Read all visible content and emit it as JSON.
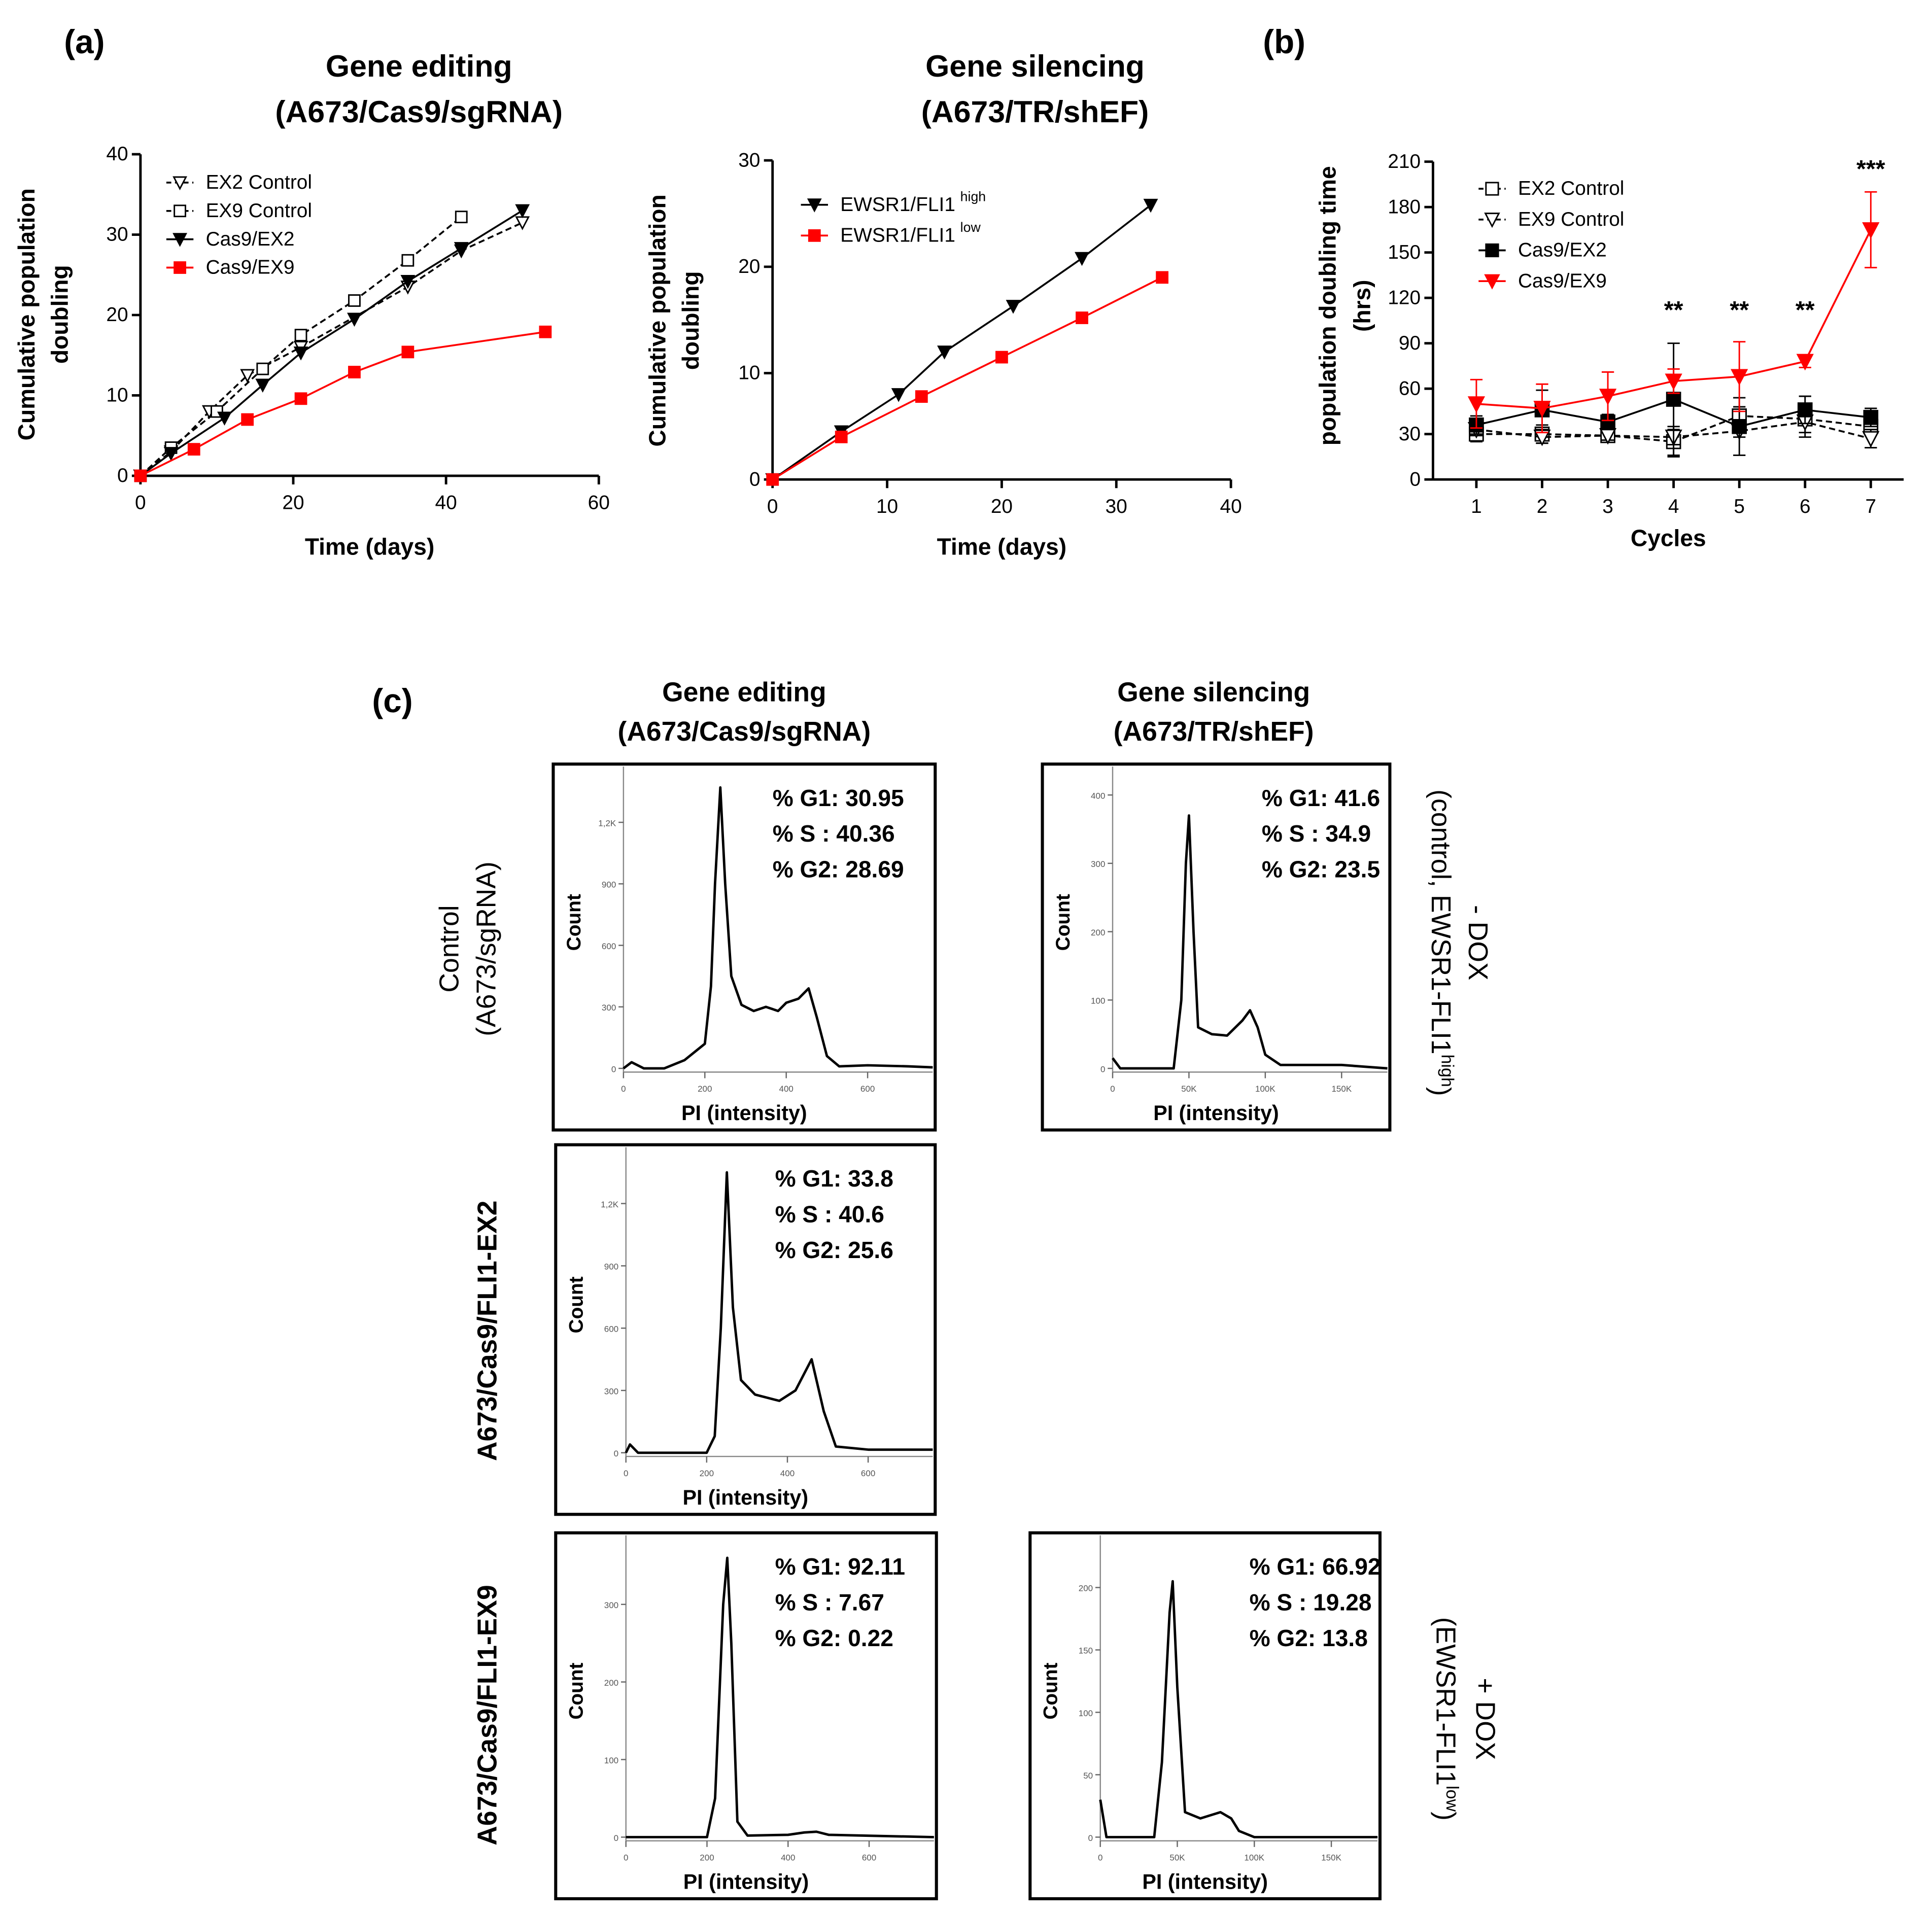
{
  "panel_labels": {
    "a": "(a)",
    "b": "(b)",
    "c": "(c)"
  },
  "titles": {
    "a_edit_1": "Gene editing",
    "a_edit_2": "(A673/Cas9/sgRNA)",
    "a_sil_1": "Gene silencing",
    "a_sil_2": "(A673/TR/shEF)",
    "c_edit_1": "Gene editing",
    "c_edit_2": "(A673/Cas9/sgRNA)",
    "c_sil_1": "Gene silencing",
    "c_sil_2": "(A673/TR/shEF)"
  },
  "row_labels": {
    "control_1": "Control",
    "control_2": "(A673/sgRNA)",
    "ex2": "A673/Cas9/FLI1-EX2",
    "ex9": "A673/Cas9/FLI1-EX9",
    "minus_dox": "- DOX",
    "minus_dox_sub": "(control, EWSR1-FLI1",
    "minus_dox_sup": "high",
    "close_paren": ")",
    "plus_dox": "+ DOX",
    "plus_dox_sub": "(EWSR1-FLI1",
    "plus_dox_sup": "low"
  },
  "chart_data": [
    {
      "id": "a_edit",
      "type": "line",
      "title": "Gene editing (A673/Cas9/sgRNA)",
      "ylabel_lines": [
        "Cumulative population",
        "doubling"
      ],
      "xlabel": "Time (days)",
      "xlim": [
        0,
        60
      ],
      "ylim": [
        0,
        40
      ],
      "xticks": [
        0,
        20,
        40,
        60
      ],
      "yticks": [
        0,
        10,
        20,
        30,
        40
      ],
      "legend": "top-left",
      "series": [
        {
          "name": "EX2 Control",
          "color": "#000000",
          "dash": true,
          "marker": "tri-open",
          "x": [
            0,
            4,
            9,
            14,
            21,
            35,
            42,
            50
          ],
          "y": [
            0,
            3,
            8,
            12.5,
            16,
            23.5,
            28,
            31.5
          ]
        },
        {
          "name": "EX9 Control",
          "color": "#000000",
          "dash": true,
          "marker": "sq-open",
          "x": [
            0,
            4,
            10,
            16,
            21,
            28,
            35,
            42
          ],
          "y": [
            0,
            3.5,
            8,
            13.3,
            17.5,
            21.8,
            26.8,
            32.2
          ]
        },
        {
          "name": "Cas9/EX2",
          "color": "#000000",
          "dash": false,
          "marker": "tri",
          "x": [
            0,
            4,
            11,
            16,
            21,
            28,
            35,
            42,
            50
          ],
          "y": [
            0,
            2.8,
            7.2,
            11.3,
            15.3,
            19.5,
            24.2,
            28.3,
            33
          ]
        },
        {
          "name": "Cas9/EX9",
          "color": "#ff0000",
          "dash": false,
          "marker": "sq",
          "x": [
            0,
            7,
            14,
            21,
            28,
            35,
            53
          ],
          "y": [
            0,
            3.3,
            7,
            9.6,
            12.9,
            15.4,
            17.9
          ]
        }
      ]
    },
    {
      "id": "a_sil",
      "type": "line",
      "title": "Gene silencing (A673/TR/shEF)",
      "ylabel_lines": [
        "Cumulative population",
        "doubling"
      ],
      "xlabel": "Time (days)",
      "xlim": [
        0,
        40
      ],
      "ylim": [
        0,
        30
      ],
      "xticks": [
        0,
        10,
        20,
        30,
        40
      ],
      "yticks": [
        0,
        10,
        20,
        30
      ],
      "legend": "top-left",
      "series": [
        {
          "name": "EWSR1/FLI1",
          "sup": "high",
          "color": "#000000",
          "dash": false,
          "marker": "tri",
          "x": [
            0,
            6,
            11,
            15,
            21,
            27,
            33
          ],
          "y": [
            0,
            4.5,
            8,
            12,
            16.3,
            20.8,
            25.8
          ]
        },
        {
          "name": "EWSR1/FLI1",
          "sup": "low",
          "color": "#ff0000",
          "dash": false,
          "marker": "sq",
          "x": [
            0,
            6,
            13,
            20,
            27,
            34
          ],
          "y": [
            0,
            4,
            7.8,
            11.5,
            15.2,
            19
          ]
        }
      ]
    },
    {
      "id": "b",
      "type": "line",
      "ylabel_lines": [
        "population doubling time",
        "(hrs)"
      ],
      "xlabel": "Cycles",
      "xlim": [
        0.34,
        7.5
      ],
      "ylim": [
        0,
        210
      ],
      "xticks": [
        1,
        2,
        3,
        4,
        5,
        6,
        7
      ],
      "yticks": [
        0,
        30,
        60,
        90,
        120,
        150,
        180,
        210
      ],
      "legend": "top-left",
      "annotations": [
        {
          "x": 4,
          "text": "**"
        },
        {
          "x": 5,
          "text": "**"
        },
        {
          "x": 6,
          "text": "**"
        },
        {
          "x": 7,
          "text": "***"
        }
      ],
      "series": [
        {
          "name": "EX2 Control",
          "color": "#000000",
          "dash": true,
          "marker": "sq-open",
          "x": [
            1,
            2,
            3,
            4,
            5,
            6,
            7
          ],
          "y": [
            30,
            30,
            29,
            25,
            42,
            40,
            35
          ],
          "err": [
            5,
            6,
            3,
            10,
            6,
            9,
            6
          ]
        },
        {
          "name": "EX9 Control",
          "color": "#000000",
          "dash": true,
          "marker": "tri-open",
          "x": [
            1,
            2,
            3,
            4,
            5,
            6,
            7
          ],
          "y": [
            33,
            28,
            29,
            28,
            32,
            38,
            27
          ],
          "err": [
            4,
            4,
            3,
            5,
            4,
            10,
            6
          ]
        },
        {
          "name": "Cas9/EX2",
          "color": "#000000",
          "dash": false,
          "marker": "sq",
          "x": [
            1,
            2,
            3,
            4,
            5,
            6,
            7
          ],
          "y": [
            36,
            46,
            38,
            53,
            35,
            46,
            41
          ],
          "err": [
            6,
            13,
            5,
            37,
            19,
            9,
            6
          ]
        },
        {
          "name": "Cas9/EX9",
          "color": "#ff0000",
          "dash": false,
          "marker": "tri",
          "x": [
            1,
            2,
            3,
            4,
            5,
            6,
            7
          ],
          "y": [
            50,
            47,
            55,
            65,
            68,
            78,
            165
          ],
          "err": [
            16,
            16,
            16,
            8,
            23,
            4,
            25
          ]
        }
      ]
    },
    {
      "id": "h_ctrl_edit",
      "type": "area",
      "xlabel": "PI (intensity)",
      "ylabel": "Count",
      "xlim": [
        0,
        760
      ],
      "ylim": [
        0,
        1400
      ],
      "xticks": [
        0,
        200,
        400,
        600
      ],
      "xtick_labels": [
        "0",
        "200",
        "400",
        "600"
      ],
      "yticks": [
        0,
        300,
        600,
        900,
        1200
      ],
      "ytick_labels": [
        "0",
        "300",
        "600",
        "900",
        "1,2K"
      ],
      "stats": [
        "% G1: 30.95",
        "% S   : 40.36",
        "% G2: 28.69"
      ],
      "x": [
        0,
        20,
        50,
        100,
        150,
        200,
        215,
        225,
        238,
        250,
        265,
        290,
        320,
        350,
        380,
        400,
        430,
        455,
        475,
        500,
        530,
        600,
        700,
        760
      ],
      "y": [
        0,
        30,
        0,
        0,
        40,
        120,
        400,
        900,
        1370,
        900,
        450,
        310,
        280,
        300,
        280,
        320,
        340,
        390,
        250,
        60,
        10,
        15,
        10,
        5
      ]
    },
    {
      "id": "h_ctrl_sil",
      "type": "area",
      "xlabel": "PI (intensity)",
      "ylabel": "Count",
      "xlim": [
        0,
        180000
      ],
      "ylim": [
        0,
        420
      ],
      "xticks": [
        0,
        50000,
        100000,
        150000
      ],
      "xtick_labels": [
        "0",
        "50K",
        "100K",
        "150K"
      ],
      "yticks": [
        0,
        100,
        200,
        300,
        400
      ],
      "ytick_labels": [
        "0",
        "100",
        "200",
        "300",
        "400"
      ],
      "stats": [
        "% G1: 41.6",
        "% S   : 34.9",
        "% G2: 23.5"
      ],
      "x": [
        0,
        5000,
        40000,
        45000,
        48000,
        50000,
        53000,
        56000,
        65000,
        75000,
        85000,
        90000,
        95000,
        100000,
        110000,
        130000,
        150000,
        180000
      ],
      "y": [
        15,
        0,
        0,
        100,
        300,
        370,
        200,
        60,
        50,
        48,
        70,
        85,
        60,
        20,
        5,
        5,
        5,
        0
      ]
    },
    {
      "id": "h_ex2",
      "type": "area",
      "xlabel": "PI (intensity)",
      "ylabel": "Count",
      "xlim": [
        0,
        760
      ],
      "ylim": [
        0,
        1400
      ],
      "xticks": [
        0,
        200,
        400,
        600
      ],
      "xtick_labels": [
        "0",
        "200",
        "400",
        "600"
      ],
      "yticks": [
        0,
        300,
        600,
        900,
        1200
      ],
      "ytick_labels": [
        "0",
        "300",
        "600",
        "900",
        "1,2K"
      ],
      "stats": [
        "% G1: 33.8",
        "% S   : 40.6",
        "% G2: 25.6"
      ],
      "x": [
        0,
        10,
        30,
        200,
        220,
        235,
        250,
        265,
        285,
        320,
        380,
        420,
        460,
        490,
        520,
        600,
        760
      ],
      "y": [
        0,
        40,
        0,
        0,
        80,
        600,
        1350,
        700,
        350,
        280,
        250,
        300,
        450,
        200,
        30,
        15,
        15
      ]
    },
    {
      "id": "h_ex9",
      "type": "area",
      "xlabel": "PI (intensity)",
      "ylabel": "Count",
      "xlim": [
        0,
        760
      ],
      "ylim": [
        0,
        370
      ],
      "xticks": [
        0,
        200,
        400,
        600
      ],
      "xtick_labels": [
        "0",
        "200",
        "400",
        "600"
      ],
      "yticks": [
        0,
        100,
        200,
        300
      ],
      "ytick_labels": [
        "0",
        "100",
        "200",
        "300"
      ],
      "stats": [
        "% G1: 92.11",
        "% S   : 7.67",
        "% G2: 0.22"
      ],
      "x": [
        0,
        200,
        220,
        240,
        250,
        260,
        275,
        300,
        400,
        440,
        470,
        500,
        760
      ],
      "y": [
        0,
        0,
        50,
        300,
        360,
        250,
        20,
        2,
        3,
        6,
        7,
        3,
        0
      ]
    },
    {
      "id": "h_dox",
      "type": "area",
      "xlabel": "PI (intensity)",
      "ylabel": "Count",
      "xlim": [
        0,
        180000
      ],
      "ylim": [
        0,
        230
      ],
      "xticks": [
        0,
        50000,
        100000,
        150000
      ],
      "xtick_labels": [
        "0",
        "50K",
        "100K",
        "150K"
      ],
      "yticks": [
        0,
        50,
        100,
        150,
        200
      ],
      "ytick_labels": [
        "0",
        "50",
        "100",
        "150",
        "200"
      ],
      "stats": [
        "% G1: 66.92",
        "% S   : 19.28",
        "% G2: 13.8"
      ],
      "x": [
        0,
        4000,
        35000,
        40000,
        45000,
        47000,
        50000,
        55000,
        65000,
        78000,
        85000,
        90000,
        100000,
        180000
      ],
      "y": [
        30,
        0,
        0,
        60,
        180,
        205,
        120,
        20,
        15,
        20,
        15,
        5,
        0,
        0
      ]
    }
  ]
}
